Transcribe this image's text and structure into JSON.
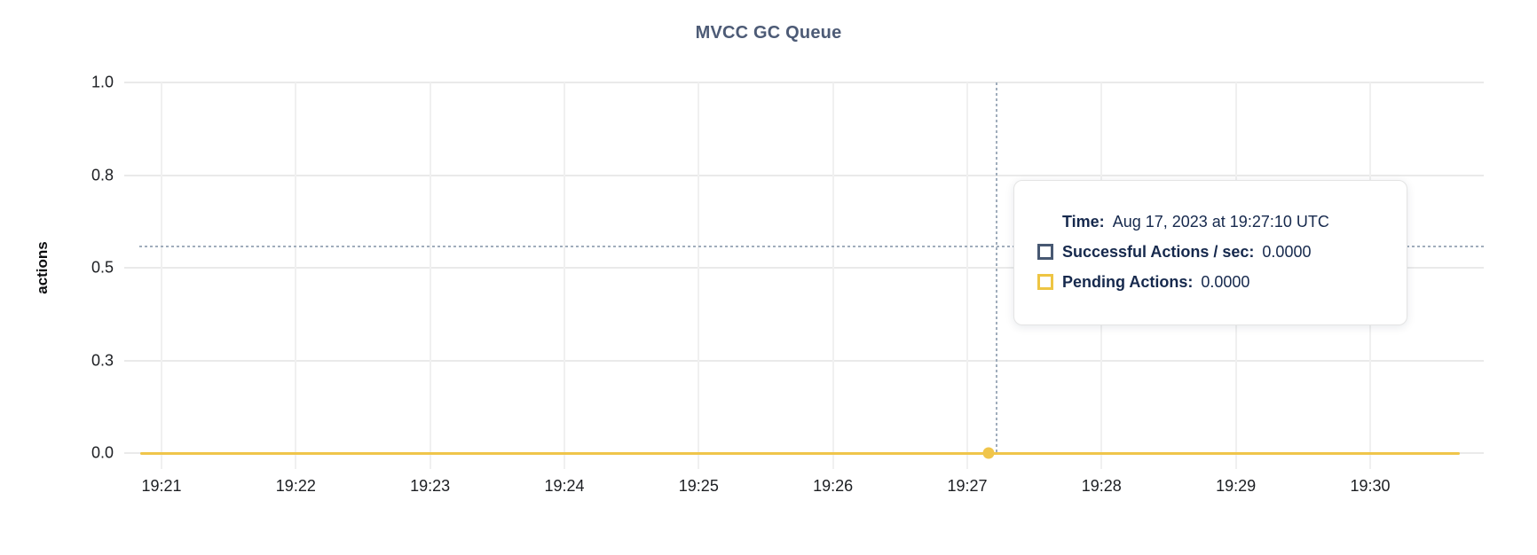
{
  "chart": {
    "title": "MVCC GC Queue",
    "y_axis_label": "actions"
  },
  "axes": {
    "y_ticks": [
      {
        "label": "1.0",
        "value": 1.0
      },
      {
        "label": "0.8",
        "value": 0.75
      },
      {
        "label": "0.5",
        "value": 0.5
      },
      {
        "label": "0.3",
        "value": 0.25
      },
      {
        "label": "0.0",
        "value": 0.0
      }
    ],
    "x_ticks": [
      "19:21",
      "19:22",
      "19:23",
      "19:24",
      "19:25",
      "19:26",
      "19:27",
      "19:28",
      "19:29",
      "19:30"
    ]
  },
  "tooltip": {
    "time_label": "Time:",
    "time_value": "Aug 17, 2023 at 19:27:10 UTC",
    "series": [
      {
        "name": "Successful Actions / sec:",
        "value": "0.0000",
        "swatch_color": "#475872"
      },
      {
        "name": "Pending Actions:",
        "value": "0.0000",
        "swatch_color": "#eec543"
      }
    ]
  },
  "colors": {
    "title": "#4d5b76",
    "tooltip_text": "#16294d",
    "series_pending_line": "#f0c54a",
    "series_successful_swatch": "#475872",
    "series_pending_swatch": "#eec543",
    "gridline": "#eaeaea",
    "crosshair": "#a0adbc",
    "tick_text": "#1c1e22"
  },
  "chart_data": {
    "type": "line",
    "title": "MVCC GC Queue",
    "xlabel": "",
    "ylabel": "actions",
    "x": [
      "19:21",
      "19:22",
      "19:23",
      "19:24",
      "19:25",
      "19:26",
      "19:27",
      "19:28",
      "19:29",
      "19:30"
    ],
    "series": [
      {
        "name": "Successful Actions / sec",
        "color": "#475872",
        "values": [
          0,
          0,
          0,
          0,
          0,
          0,
          0,
          0,
          0,
          0
        ]
      },
      {
        "name": "Pending Actions",
        "color": "#eec543",
        "values": [
          0,
          0,
          0,
          0,
          0,
          0,
          0,
          0,
          0,
          0
        ]
      }
    ],
    "ylim": [
      0.0,
      1.0
    ],
    "y_tick_labels": [
      "0.0",
      "0.3",
      "0.5",
      "0.8",
      "1.0"
    ],
    "grid": true,
    "legend_position": "tooltip-only",
    "hover_point": {
      "time": "Aug 17, 2023 at 19:27:10 UTC",
      "x_tick": "19:27",
      "values": {
        "Successful Actions / sec": 0.0,
        "Pending Actions": 0.0
      }
    }
  }
}
